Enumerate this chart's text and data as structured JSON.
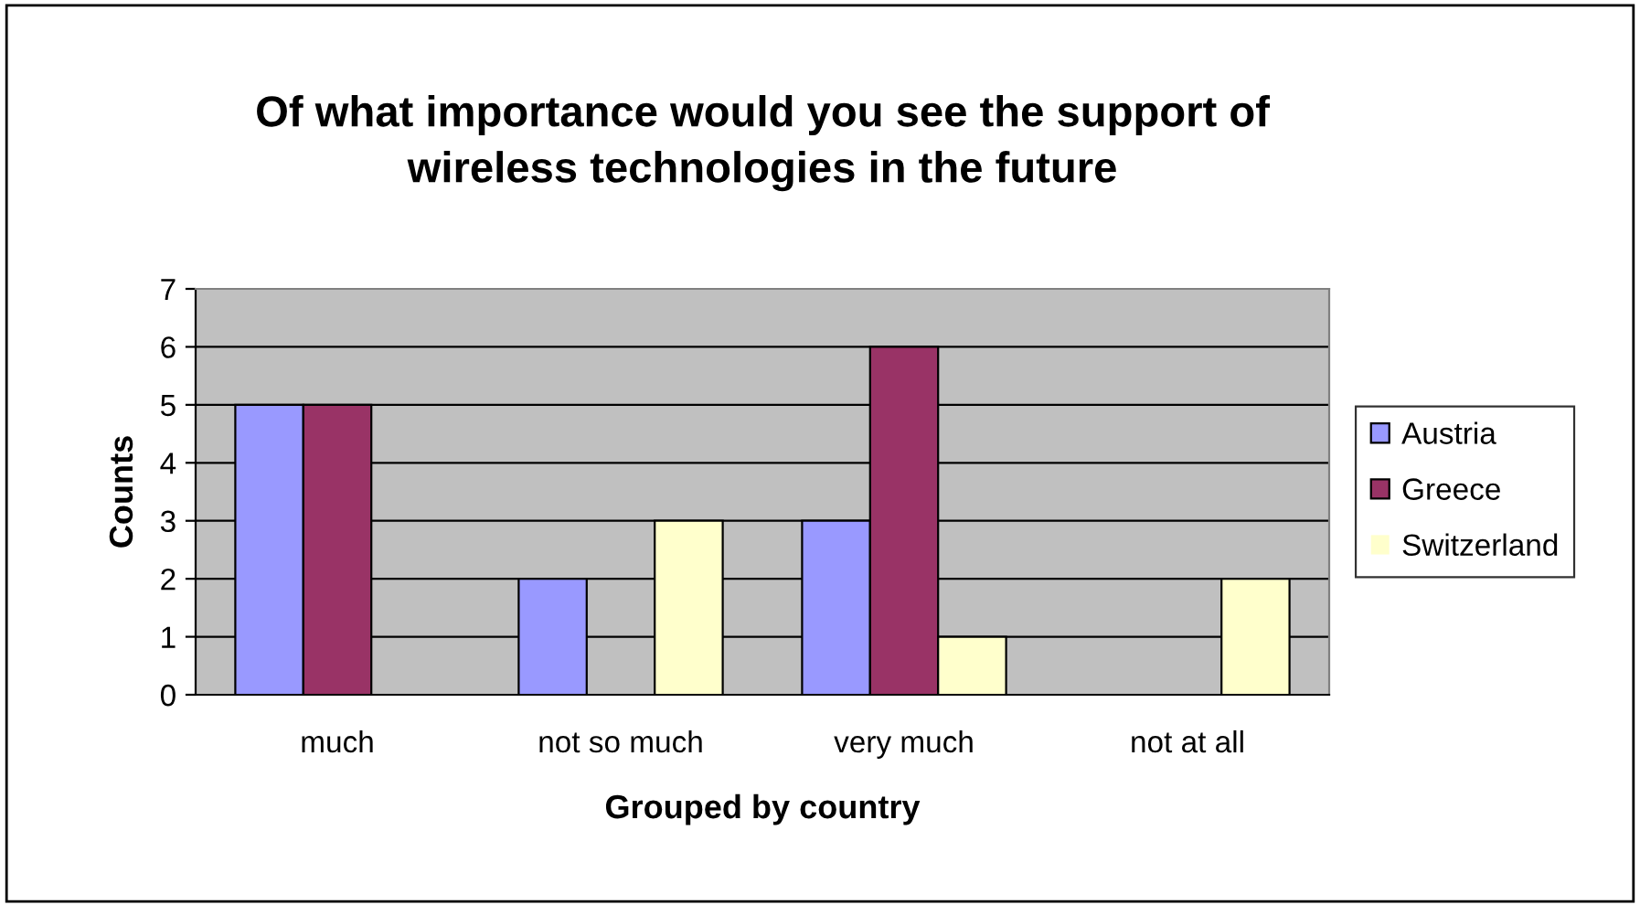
{
  "chart_data": {
    "type": "bar",
    "title": "Of what importance would you see the support of\nwireless technologies in the future",
    "xlabel": "Grouped by country",
    "ylabel": "Counts",
    "categories": [
      "much",
      "not so much",
      "very much",
      "not at all"
    ],
    "series": [
      {
        "name": "Austria",
        "color": "#9999ff",
        "values": [
          5,
          2,
          3,
          0
        ]
      },
      {
        "name": "Greece",
        "color": "#993366",
        "values": [
          5,
          0,
          6,
          0
        ]
      },
      {
        "name": "Switzerland",
        "color": "#ffffcc",
        "values": [
          0,
          3,
          1,
          2
        ]
      }
    ],
    "ylim": [
      0,
      7
    ],
    "yticks": [
      0,
      1,
      2,
      3,
      4,
      5,
      6,
      7
    ],
    "grid": "y",
    "legend": "right"
  }
}
